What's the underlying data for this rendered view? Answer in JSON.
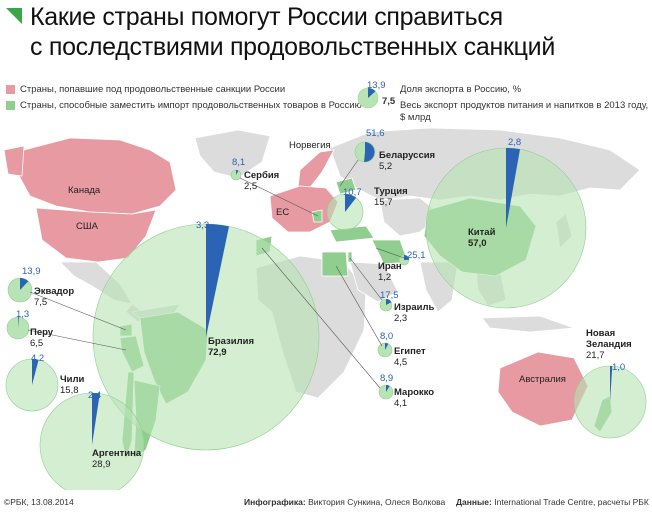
{
  "title_line1": "Какие страны помогут России справиться",
  "title_line2": "с последствиями продовольственных санкций",
  "legend": {
    "sanctioned": "Страны, попавшие под продовольственные санкции России",
    "replacement": "Страны, способные заместить импорт продовольственных товаров в Россию",
    "sample_pct": "13,9",
    "sample_value": "7,5",
    "share_label": "Доля экспорта в Россию, %",
    "total_label_1": "Весь экспорт продуктов питания и напитков в 2013 году,",
    "total_label_2": "$ млрд"
  },
  "sanctioned_labels": {
    "canada": "Канада",
    "usa": "США",
    "norway": "Норвегия",
    "eu": "ЕС",
    "australia": "Австралия"
  },
  "countries": [
    {
      "name": "Беларуссия",
      "value": "5,2",
      "pct": "51,6"
    },
    {
      "name": "Сербия",
      "value": "2,5",
      "pct": "8,1"
    },
    {
      "name": "Турция",
      "value": "15,7",
      "pct": "10,7"
    },
    {
      "name": "Китай",
      "value": "57,0",
      "pct": "2,8"
    },
    {
      "name": "Иран",
      "value": "1,2",
      "pct": "25,1"
    },
    {
      "name": "Израиль",
      "value": "2,3",
      "pct": "17,5"
    },
    {
      "name": "Египет",
      "value": "4,5",
      "pct": "8,0"
    },
    {
      "name": "Марокко",
      "value": "4,1",
      "pct": "8,9"
    },
    {
      "name": "Бразилия",
      "value": "72,9",
      "pct": "3,3"
    },
    {
      "name": "Эквадор",
      "value": "7,5",
      "pct": "13,9"
    },
    {
      "name": "Перу",
      "value": "6,5",
      "pct": "1,3"
    },
    {
      "name": "Чили",
      "value": "15,8",
      "pct": "4,2"
    },
    {
      "name": "Аргентина",
      "value": "28,9",
      "pct": "2,4"
    },
    {
      "name": "Новая Зеландия",
      "name_line1": "Новая",
      "name_line2": "Зеландия",
      "value": "21,7",
      "pct": "1,0"
    }
  ],
  "footer": {
    "copyright": "©РБК, 13.08.2014",
    "infographic_label": "Инфографика:",
    "infographic_authors": "Виктория Сункина, Олеся Волкова",
    "data_label": "Данные:",
    "data_sources": "International Trade Centre, расчеты РБК"
  },
  "colors": {
    "sanctioned": "#e89aa2",
    "replacement": "#8fce8e",
    "bubble": "#b8e3b4",
    "share": "#2b63b5",
    "land": "#dcdcdc",
    "title_mark": "#3aa54a"
  },
  "icons": [
    "title-triangle-icon"
  ]
}
